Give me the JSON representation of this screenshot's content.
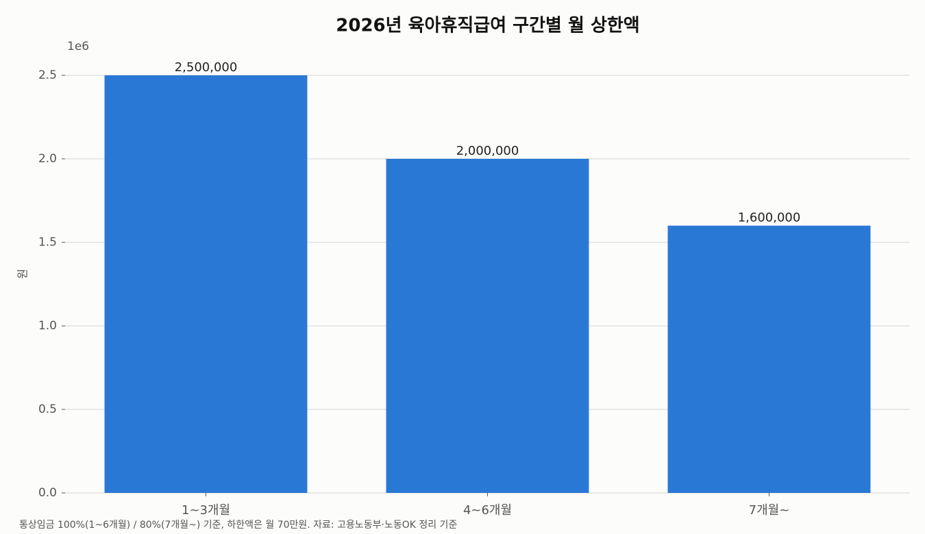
{
  "chart_data": {
    "type": "bar",
    "title": "2026년 육아휴직급여 구간별 월 상한액",
    "ylabel": "원",
    "axis_offset_label": "1e6",
    "categories": [
      "1~3개월",
      "4~6개월",
      "7개월~"
    ],
    "values": [
      2500000,
      2000000,
      1600000
    ],
    "value_labels": [
      "2,500,000",
      "2,000,000",
      "1,600,000"
    ],
    "color": "#2a78d6",
    "ylim": [
      0,
      2625000
    ],
    "yticks": [
      {
        "value": 0,
        "label": "0.0"
      },
      {
        "value": 500000,
        "label": "0.5"
      },
      {
        "value": 1000000,
        "label": "1.0"
      },
      {
        "value": 1500000,
        "label": "1.5"
      },
      {
        "value": 2000000,
        "label": "2.0"
      },
      {
        "value": 2500000,
        "label": "2.5"
      }
    ],
    "grid": true,
    "footnote": "통상임금 100%(1~6개월) / 80%(7개월~) 기준, 하한액은 월 70만원. 자료: 고용노동부·노동OK 정리 기준"
  }
}
